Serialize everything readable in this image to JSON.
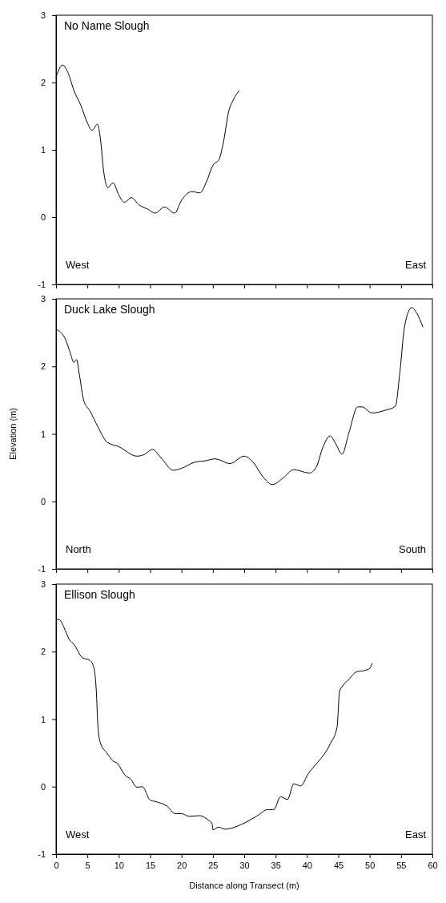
{
  "chart_data": [
    {
      "type": "line",
      "title": "No Name Slough",
      "annotations": [
        "West",
        "East"
      ],
      "xlim": [
        0,
        60
      ],
      "xticks": [
        0,
        5,
        10,
        15,
        20,
        25,
        30,
        35,
        40,
        45,
        50,
        55,
        60
      ],
      "ylim": [
        -1,
        3
      ],
      "yticks": [
        -1,
        0,
        1,
        2,
        3
      ],
      "tick_labels": "y",
      "marker": "none",
      "line_style": "solid",
      "series": [
        {
          "color": "#000000",
          "x": [
            0,
            1.04,
            1.88,
            2.9,
            3.96,
            5,
            5.75,
            6.58,
            7.08,
            7.58,
            8.25,
            9.08,
            10,
            10.9,
            12,
            13.25,
            14.6,
            15.8,
            17.3,
            18.9,
            20,
            21.7,
            22.9,
            24,
            25,
            26,
            26.7,
            27.5,
            28.3,
            29.2
          ],
          "values": [
            2.08,
            2.26,
            2.15,
            1.87,
            1.66,
            1.4,
            1.29,
            1.38,
            1.16,
            0.69,
            0.44,
            0.51,
            0.33,
            0.22,
            0.29,
            0.18,
            0.12,
            0.06,
            0.15,
            0.06,
            0.25,
            0.38,
            0.36,
            0.53,
            0.77,
            0.86,
            1.12,
            1.56,
            1.75,
            1.88
          ]
        }
      ]
    },
    {
      "type": "line",
      "title": "Duck Lake Slough",
      "ylabel": "Elevation (m)",
      "annotations": [
        "North",
        "South"
      ],
      "xlim": [
        0,
        60
      ],
      "xticks": [
        0,
        5,
        10,
        15,
        20,
        25,
        30,
        35,
        40,
        45,
        50,
        55,
        60
      ],
      "ylim": [
        -1,
        3
      ],
      "yticks": [
        -1,
        0,
        1,
        2,
        3
      ],
      "tick_labels": "y",
      "marker": "none",
      "line_style": "solid",
      "series": [
        {
          "color": "#000000",
          "x": [
            0,
            1.46,
            2.3,
            2.83,
            3.25,
            3.75,
            4.4,
            5.4,
            6.7,
            8.1,
            10,
            12.9,
            13.96,
            15.4,
            16.7,
            18.7,
            20,
            22.1,
            23.75,
            25.4,
            27.7,
            30,
            31.5,
            33.1,
            34.5,
            36.25,
            37.9,
            40.4,
            41.5,
            42.5,
            43.7,
            44.6,
            45.6,
            46.7,
            48.1,
            48.75,
            50.4,
            52.5,
            54.1,
            54.8,
            55.6,
            56.7,
            57.5,
            58.5
          ],
          "values": [
            2.55,
            2.41,
            2.19,
            2.06,
            2.1,
            1.86,
            1.5,
            1.34,
            1.1,
            0.88,
            0.81,
            0.67,
            0.69,
            0.77,
            0.65,
            0.46,
            0.49,
            0.58,
            0.6,
            0.63,
            0.56,
            0.67,
            0.57,
            0.35,
            0.25,
            0.35,
            0.47,
            0.42,
            0.51,
            0.79,
            0.97,
            0.85,
            0.7,
            1.02,
            1.4,
            1.4,
            1.31,
            1.35,
            1.41,
            1.9,
            2.61,
            2.87,
            2.79,
            2.58
          ]
        }
      ]
    },
    {
      "type": "line",
      "title": "Ellison Slough",
      "xlabel": "Distance along Transect (m)",
      "annotations": [
        "West",
        "East"
      ],
      "xlim": [
        0,
        60
      ],
      "xticks": [
        0,
        5,
        10,
        15,
        20,
        25,
        30,
        35,
        40,
        45,
        50,
        55,
        60
      ],
      "ylim": [
        -1,
        3
      ],
      "yticks": [
        -1,
        0,
        1,
        2,
        3
      ],
      "marker": "none",
      "line_style": "solid",
      "series": [
        {
          "color": "#000000",
          "x": [
            0,
            0.6,
            1.25,
            2.1,
            2.9,
            4.2,
            5.4,
            6,
            6.4,
            6.7,
            7.1,
            8.1,
            8.96,
            9.8,
            11,
            11.9,
            12.9,
            13.75,
            15,
            15.8,
            17.7,
            19,
            20,
            21.25,
            22.9,
            24.2,
            24.9,
            25,
            25.9,
            26.9,
            29.8,
            32.1,
            33.75,
            34.7,
            35.8,
            36.9,
            37.9,
            39,
            40.2,
            41.7,
            42.9,
            43.75,
            44.8,
            45.2,
            45.6,
            46.7,
            47.9,
            49.2,
            50,
            50.4
          ],
          "values": [
            2.48,
            2.47,
            2.36,
            2.18,
            2.1,
            1.91,
            1.87,
            1.77,
            1.45,
            0.86,
            0.64,
            0.5,
            0.39,
            0.34,
            0.17,
            0.11,
            -0.01,
            0,
            -0.2,
            -0.22,
            -0.29,
            -0.4,
            -0.4,
            -0.44,
            -0.43,
            -0.49,
            -0.55,
            -0.64,
            -0.6,
            -0.63,
            -0.55,
            -0.43,
            -0.34,
            -0.34,
            -0.15,
            -0.19,
            0.04,
            0.01,
            0.19,
            0.36,
            0.5,
            0.64,
            0.88,
            1.41,
            1.48,
            1.59,
            1.7,
            1.72,
            1.75,
            1.83
          ]
        }
      ]
    }
  ]
}
